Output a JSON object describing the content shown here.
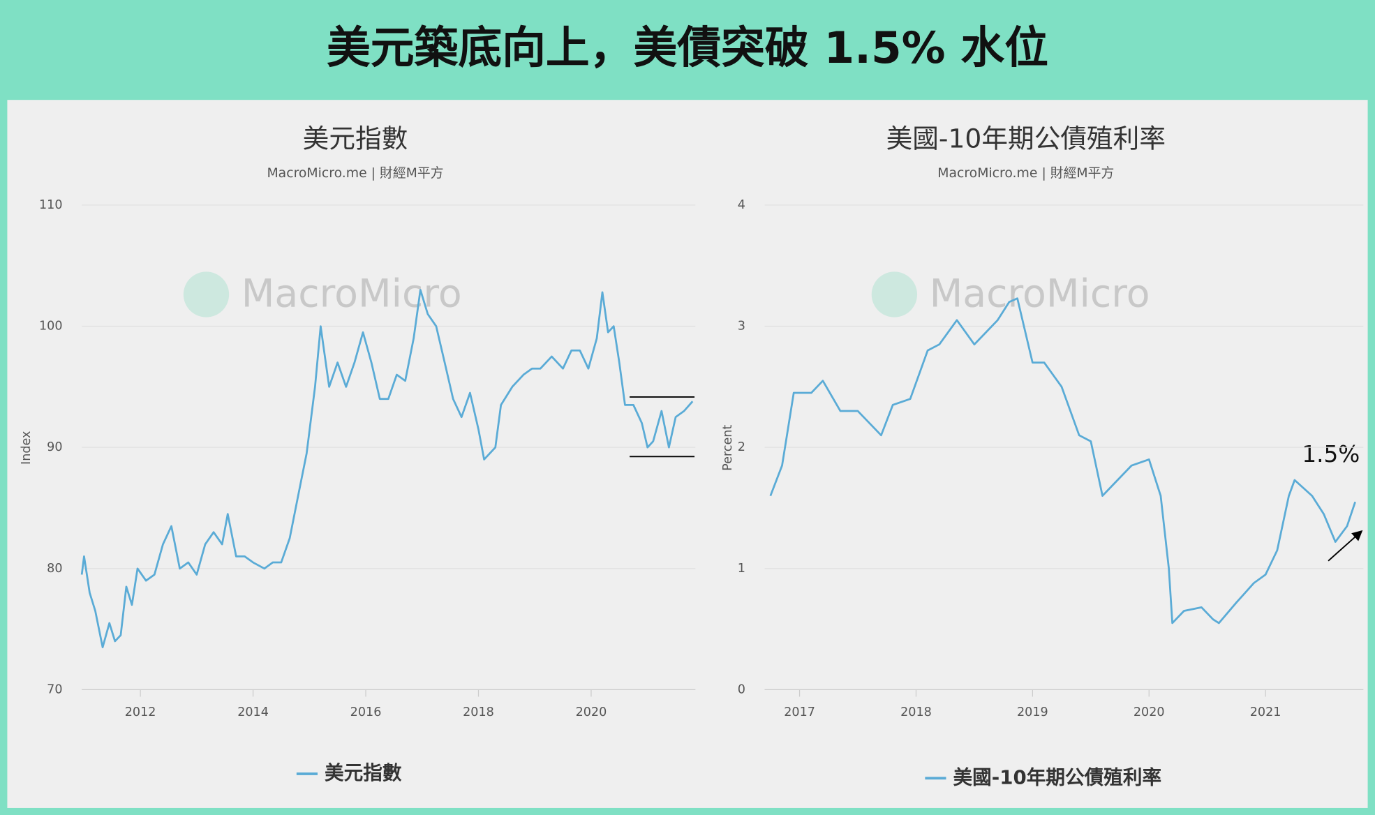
{
  "title": "美元築底向上，美債突破 1.5% 水位",
  "chart_data": [
    {
      "type": "line",
      "title": "美元指數",
      "subtitle": "MacroMicro.me | 財經M平方",
      "watermark": "MacroMicro",
      "y_label": "Index",
      "x": [
        2010.96,
        2011.0,
        2011.1,
        2011.2,
        2011.33,
        2011.45,
        2011.55,
        2011.65,
        2011.75,
        2011.85,
        2011.95,
        2012.1,
        2012.25,
        2012.4,
        2012.55,
        2012.7,
        2012.85,
        2013.0,
        2013.15,
        2013.3,
        2013.45,
        2013.55,
        2013.7,
        2013.85,
        2014.0,
        2014.2,
        2014.35,
        2014.5,
        2014.65,
        2014.8,
        2014.95,
        2015.1,
        2015.2,
        2015.35,
        2015.5,
        2015.65,
        2015.8,
        2015.95,
        2016.1,
        2016.25,
        2016.4,
        2016.55,
        2016.7,
        2016.85,
        2016.97,
        2017.1,
        2017.25,
        2017.4,
        2017.55,
        2017.7,
        2017.85,
        2018.0,
        2018.1,
        2018.3,
        2018.4,
        2018.6,
        2018.8,
        2018.95,
        2019.1,
        2019.3,
        2019.5,
        2019.65,
        2019.8,
        2019.95,
        2020.1,
        2020.2,
        2020.3,
        2020.4,
        2020.5,
        2020.6,
        2020.75,
        2020.9,
        2021.0,
        2021.1,
        2021.25,
        2021.38,
        2021.5,
        2021.65,
        2021.8
      ],
      "series": [
        {
          "name": "美元指數",
          "color": "#5aabd6",
          "values": [
            79.5,
            81,
            78,
            76.5,
            73.5,
            75.5,
            74,
            74.5,
            78.5,
            77,
            80,
            79,
            79.5,
            82,
            83.5,
            80,
            80.5,
            79.5,
            82,
            83,
            82,
            84.5,
            81,
            81,
            80.5,
            80,
            80.5,
            80.5,
            82.5,
            86,
            89.5,
            95,
            100,
            95,
            97,
            95,
            97,
            99.5,
            97,
            94,
            94,
            96,
            95.5,
            99,
            103,
            101,
            100,
            97,
            94,
            92.5,
            94.5,
            91.5,
            89,
            90,
            93.5,
            95,
            96,
            96.5,
            96.5,
            97.5,
            96.5,
            98,
            98,
            96.5,
            99,
            102.8,
            99.5,
            100,
            97,
            93.5,
            93.5,
            92,
            90,
            90.5,
            93,
            90,
            92.5,
            93,
            93.8
          ]
        }
      ],
      "xlim": [
        2010.96,
        2021.85
      ],
      "xticks": [
        2012,
        2014,
        2016,
        2018,
        2020
      ],
      "ylim": [
        70,
        110
      ],
      "yticks": [
        70,
        80,
        90,
        100,
        110
      ],
      "grid": true
    },
    {
      "type": "line",
      "title": "美國-10年期公債殖利率",
      "subtitle": "MacroMicro.me | 財經M平方",
      "watermark": "MacroMicro",
      "y_label": "Percent",
      "annotation": "1.5%",
      "x": [
        2016.75,
        2016.85,
        2016.95,
        2017.1,
        2017.2,
        2017.35,
        2017.5,
        2017.7,
        2017.8,
        2017.95,
        2018.1,
        2018.2,
        2018.35,
        2018.5,
        2018.6,
        2018.7,
        2018.8,
        2018.87,
        2019.0,
        2019.1,
        2019.25,
        2019.4,
        2019.5,
        2019.6,
        2019.7,
        2019.85,
        2020.0,
        2020.1,
        2020.17,
        2020.2,
        2020.3,
        2020.45,
        2020.55,
        2020.6,
        2020.75,
        2020.9,
        2021.0,
        2021.1,
        2021.2,
        2021.25,
        2021.4,
        2021.5,
        2021.6,
        2021.7,
        2021.77
      ],
      "series": [
        {
          "name": "美國-10年期公債殖利率",
          "color": "#5aabd6",
          "values": [
            1.6,
            1.85,
            2.45,
            2.45,
            2.55,
            2.3,
            2.3,
            2.1,
            2.35,
            2.4,
            2.8,
            2.85,
            3.05,
            2.85,
            2.95,
            3.05,
            3.2,
            3.23,
            2.7,
            2.7,
            2.5,
            2.1,
            2.05,
            1.6,
            1.7,
            1.85,
            1.9,
            1.6,
            1.0,
            0.55,
            0.65,
            0.68,
            0.58,
            0.55,
            0.72,
            0.88,
            0.95,
            1.15,
            1.6,
            1.73,
            1.6,
            1.45,
            1.22,
            1.35,
            1.55
          ]
        }
      ],
      "xlim": [
        2016.7,
        2021.84
      ],
      "xticks": [
        2017,
        2018,
        2019,
        2020,
        2021
      ],
      "ylim": [
        0,
        4
      ],
      "yticks": [
        0,
        1,
        2,
        3,
        4
      ],
      "grid": true
    }
  ]
}
